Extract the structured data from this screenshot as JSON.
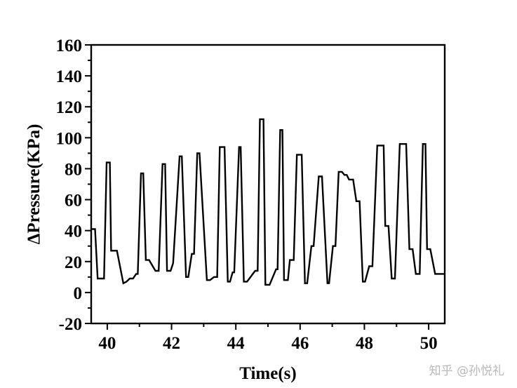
{
  "chart_data": {
    "type": "line",
    "title": "",
    "xlabel": "Time(s)",
    "ylabel": "ΔPressure(KPa)",
    "xlim": [
      39.5,
      50.5
    ],
    "ylim": [
      -20,
      160
    ],
    "xticks": [
      40,
      42,
      44,
      46,
      48,
      50
    ],
    "yticks": [
      -20,
      0,
      20,
      40,
      60,
      80,
      100,
      120,
      140,
      160
    ],
    "grid": false,
    "legend": "none",
    "series": [
      {
        "color": "#000000",
        "x": [
          39.5,
          39.62,
          39.7,
          39.9,
          39.98,
          40.08,
          40.12,
          40.3,
          40.5,
          40.6,
          40.7,
          40.8,
          40.9,
          40.95,
          41.05,
          41.12,
          41.2,
          41.3,
          41.5,
          41.6,
          41.72,
          41.8,
          41.86,
          41.97,
          42.05,
          42.25,
          42.32,
          42.45,
          42.52,
          42.63,
          42.7,
          42.8,
          42.87,
          43.1,
          43.2,
          43.32,
          43.42,
          43.5,
          43.65,
          43.75,
          43.82,
          43.9,
          43.95,
          44.1,
          44.15,
          44.25,
          44.35,
          44.6,
          44.68,
          44.75,
          44.86,
          44.92,
          45.05,
          45.25,
          45.3,
          45.38,
          45.45,
          45.5,
          45.62,
          45.68,
          45.8,
          45.9,
          46.05,
          46.15,
          46.22,
          46.35,
          46.42,
          46.58,
          46.68,
          46.85,
          46.9,
          47.02,
          47.1,
          47.2,
          47.3,
          47.38,
          47.45,
          47.52,
          47.65,
          47.75,
          47.85,
          47.95,
          48.02,
          48.15,
          48.25,
          48.4,
          48.6,
          48.65,
          48.75,
          48.85,
          48.95,
          49.1,
          49.3,
          49.4,
          49.5,
          49.6,
          49.72,
          49.82,
          49.9,
          49.95,
          50.05,
          50.2,
          50.28,
          50.38,
          50.5
        ],
        "y": [
          41,
          41,
          9,
          9,
          84,
          84,
          27,
          27,
          6,
          7,
          9,
          9,
          12,
          12,
          77,
          77,
          21,
          21,
          14,
          14,
          83,
          83,
          14,
          14,
          19,
          88,
          88,
          10,
          10,
          25,
          25,
          90,
          90,
          8,
          8,
          10,
          10,
          94,
          94,
          7,
          7,
          13,
          13,
          94,
          94,
          7,
          7,
          14,
          14,
          112,
          112,
          5,
          5,
          15,
          15,
          105,
          105,
          8,
          8,
          21,
          21,
          89,
          89,
          6,
          6,
          30,
          30,
          75,
          75,
          6,
          6,
          30,
          30,
          78,
          78,
          76,
          76,
          73,
          73,
          59,
          59,
          7,
          7,
          17,
          17,
          95,
          95,
          43,
          43,
          9,
          9,
          96,
          96,
          28,
          28,
          12,
          12,
          96,
          96,
          28,
          28,
          12,
          12,
          12,
          12
        ]
      }
    ]
  },
  "watermark": "知乎 @孙悦礼"
}
